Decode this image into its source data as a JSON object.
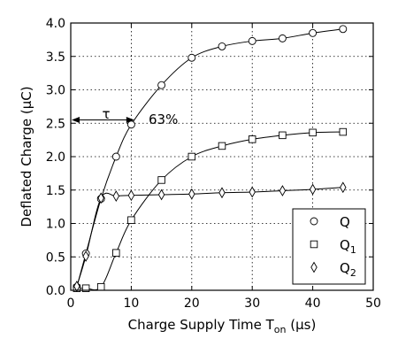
{
  "chart_data": {
    "type": "line",
    "xlabel": "Charge Supply Time T",
    "xlabel_sub": "on",
    "xlabel_unit": " (µs)",
    "ylabel": "Deflated Charge (µC)",
    "xlim": [
      0,
      50
    ],
    "ylim": [
      0,
      4.0
    ],
    "x_ticks": [
      0,
      10,
      20,
      30,
      40,
      50
    ],
    "y_ticks": [
      0.0,
      0.5,
      1.0,
      1.5,
      2.0,
      2.5,
      3.0,
      3.5,
      4.0
    ],
    "x_tick_labels": [
      "0",
      "10",
      "20",
      "30",
      "40",
      "50"
    ],
    "y_tick_labels": [
      "0.0",
      "0.5",
      "1.0",
      "1.5",
      "2.0",
      "2.5",
      "3.0",
      "3.5",
      "4.0"
    ],
    "grid": true,
    "legend_position": "lower-right",
    "series": [
      {
        "name": "Q",
        "sub": "",
        "marker": "circle",
        "x": [
          1,
          2.5,
          5,
          7.5,
          10,
          15,
          20,
          25,
          30,
          35,
          40,
          45
        ],
        "y": [
          0.05,
          0.55,
          1.37,
          2.0,
          2.48,
          3.07,
          3.48,
          3.65,
          3.73,
          3.77,
          3.85,
          3.91
        ]
      },
      {
        "name": "Q",
        "sub": "1",
        "marker": "square",
        "x": [
          1,
          2.5,
          5,
          7.5,
          10,
          15,
          20,
          25,
          30,
          35,
          40,
          45
        ],
        "y": [
          0.03,
          0.03,
          0.05,
          0.56,
          1.05,
          1.65,
          2.0,
          2.16,
          2.26,
          2.32,
          2.36,
          2.37
        ]
      },
      {
        "name": "Q",
        "sub": "2",
        "marker": "diamond",
        "x": [
          1,
          2.5,
          5,
          7.5,
          10,
          15,
          20,
          25,
          30,
          35,
          40,
          45
        ],
        "y": [
          0.06,
          0.51,
          1.38,
          1.41,
          1.42,
          1.43,
          1.44,
          1.46,
          1.47,
          1.49,
          1.51,
          1.54
        ]
      }
    ],
    "annotations": {
      "tau_label": "τ",
      "percent_label": "63%",
      "arrow_y": 2.55,
      "arrow_x": [
        0,
        10.5
      ]
    }
  }
}
